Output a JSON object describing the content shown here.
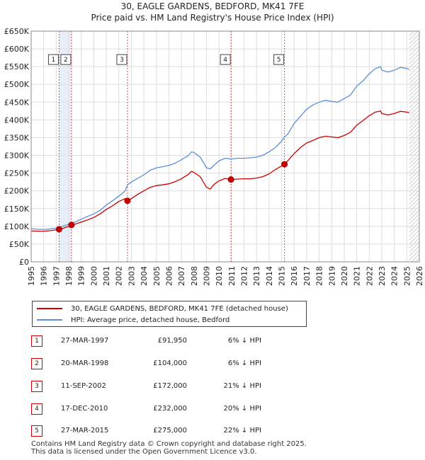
{
  "header": {
    "title_line1": "30, EAGLE GARDENS, BEDFORD, MK41 7FE",
    "title_line2": "Price paid vs. HM Land Registry's House Price Index (HPI)"
  },
  "legend": {
    "property": "30, EAGLE GARDENS, BEDFORD, MK41 7FE (detached house)",
    "hpi": "HPI: Average price, detached house, Bedford"
  },
  "colors": {
    "property_line": "#cc0000",
    "hpi_line": "#5b8fd6",
    "future_hatch": "#bbbbbb",
    "shade": "#e8eef8"
  },
  "sales": [
    {
      "num": "1",
      "date": "27-MAR-1997",
      "price": "£91,950",
      "hpi": "6% ↓ HPI"
    },
    {
      "num": "2",
      "date": "20-MAR-1998",
      "price": "£104,000",
      "hpi": "6% ↓ HPI"
    },
    {
      "num": "3",
      "date": "11-SEP-2002",
      "price": "£172,000",
      "hpi": "21% ↓ HPI"
    },
    {
      "num": "4",
      "date": "17-DEC-2010",
      "price": "£232,000",
      "hpi": "20% ↓ HPI"
    },
    {
      "num": "5",
      "date": "27-MAR-2015",
      "price": "£275,000",
      "hpi": "22% ↓ HPI"
    }
  ],
  "footer": {
    "line1": "Contains HM Land Registry data © Crown copyright and database right 2025.",
    "line2": "This data is licensed under the Open Government Licence v3.0."
  },
  "chart_data": {
    "type": "line",
    "title": "30, EAGLE GARDENS, BEDFORD, MK41 7FE — Price paid vs. HM Land Registry's House Price Index (HPI)",
    "xlim": [
      1995,
      2026
    ],
    "ylim": [
      0,
      650000
    ],
    "x_ticks": [
      1995,
      1996,
      1997,
      1998,
      1999,
      2000,
      2001,
      2002,
      2003,
      2004,
      2005,
      2006,
      2007,
      2008,
      2009,
      2010,
      2011,
      2012,
      2013,
      2014,
      2015,
      2016,
      2017,
      2018,
      2019,
      2020,
      2021,
      2022,
      2023,
      2024,
      2025,
      2026
    ],
    "y_ticks": [
      0,
      50000,
      100000,
      150000,
      200000,
      250000,
      300000,
      350000,
      400000,
      450000,
      500000,
      550000,
      600000,
      650000
    ],
    "y_tick_labels": [
      "£0",
      "£50K",
      "£100K",
      "£150K",
      "£200K",
      "£250K",
      "£300K",
      "£350K",
      "£400K",
      "£450K",
      "£500K",
      "£550K",
      "£600K",
      "£650K"
    ],
    "future_from": 2025.2,
    "series": [
      {
        "name": "HPI: Average price, detached house, Bedford",
        "x": [
          1995,
          1995.5,
          1996,
          1996.5,
          1997,
          1997.23,
          1997.5,
          1998,
          1998.22,
          1998.5,
          1999,
          1999.5,
          2000,
          2000.5,
          2001,
          2001.5,
          2002,
          2002.5,
          2002.7,
          2003,
          2003.5,
          2004,
          2004.5,
          2005,
          2005.5,
          2006,
          2006.5,
          2007,
          2007.5,
          2007.8,
          2008,
          2008.5,
          2009,
          2009.3,
          2009.6,
          2010,
          2010.5,
          2010.96,
          2011,
          2011.5,
          2012,
          2012.5,
          2013,
          2013.5,
          2014,
          2014.5,
          2015,
          2015.23,
          2015.5,
          2016,
          2016.5,
          2017,
          2017.5,
          2018,
          2018.5,
          2019,
          2019.5,
          2020,
          2020.5,
          2021,
          2021.5,
          2022,
          2022.5,
          2022.9,
          2023,
          2023.5,
          2024,
          2024.5,
          2025,
          2025.2
        ],
        "values": [
          93000,
          92000,
          91000,
          93000,
          95000,
          97500,
          100000,
          106000,
          110000,
          112000,
          120000,
          128000,
          135000,
          145000,
          160000,
          172000,
          185000,
          200000,
          217000,
          225000,
          235000,
          245000,
          258000,
          265000,
          268000,
          272000,
          278000,
          288000,
          298000,
          310000,
          308000,
          295000,
          265000,
          262000,
          272000,
          285000,
          292000,
          290000,
          290000,
          292000,
          292000,
          293000,
          295000,
          300000,
          310000,
          322000,
          340000,
          352000,
          360000,
          390000,
          410000,
          430000,
          442000,
          450000,
          455000,
          452000,
          450000,
          460000,
          470000,
          495000,
          510000,
          530000,
          545000,
          550000,
          540000,
          535000,
          540000,
          548000,
          545000,
          542000
        ]
      },
      {
        "name": "30, EAGLE GARDENS, BEDFORD, MK41 7FE (detached house)",
        "x": [
          1995,
          1995.5,
          1996,
          1996.5,
          1997,
          1997.23,
          1997.5,
          1998,
          1998.22,
          1998.5,
          1999,
          1999.5,
          2000,
          2000.5,
          2001,
          2001.5,
          2002,
          2002.5,
          2002.69,
          2003,
          2003.5,
          2004,
          2004.5,
          2005,
          2005.5,
          2006,
          2006.5,
          2007,
          2007.5,
          2007.8,
          2008,
          2008.5,
          2009,
          2009.3,
          2009.6,
          2010,
          2010.5,
          2010.96,
          2011,
          2011.5,
          2012,
          2012.5,
          2013,
          2013.5,
          2014,
          2014.5,
          2015,
          2015.23,
          2015.5,
          2016,
          2016.5,
          2017,
          2017.5,
          2018,
          2018.5,
          2019,
          2019.5,
          2020,
          2020.5,
          2021,
          2021.5,
          2022,
          2022.5,
          2022.9,
          2023,
          2023.5,
          2024,
          2024.5,
          2025,
          2025.2
        ],
        "values": [
          87000,
          86500,
          86000,
          88000,
          90000,
          91950,
          94000,
          100000,
          104000,
          106000,
          112000,
          118000,
          125000,
          135000,
          148000,
          158000,
          170000,
          178000,
          172000,
          178000,
          190000,
          200000,
          210000,
          215000,
          217000,
          220000,
          226000,
          234000,
          245000,
          255000,
          252000,
          240000,
          210000,
          205000,
          218000,
          228000,
          235000,
          232000,
          232000,
          233000,
          234000,
          234000,
          236000,
          240000,
          248000,
          260000,
          270000,
          275000,
          285000,
          305000,
          322000,
          335000,
          342000,
          350000,
          354000,
          352000,
          350000,
          356000,
          365000,
          385000,
          398000,
          412000,
          422000,
          425000,
          418000,
          414000,
          418000,
          424000,
          422000,
          420000
        ]
      }
    ],
    "sales": [
      {
        "label": "1",
        "x": 1997.23,
        "price": 91950
      },
      {
        "label": "2",
        "x": 1998.22,
        "price": 104000
      },
      {
        "label": "3",
        "x": 2002.69,
        "price": 172000
      },
      {
        "label": "4",
        "x": 2010.96,
        "price": 232000
      },
      {
        "label": "5",
        "x": 2015.23,
        "price": 275000
      }
    ],
    "marker_label_value": 570000,
    "legend_position": "below-chart"
  }
}
